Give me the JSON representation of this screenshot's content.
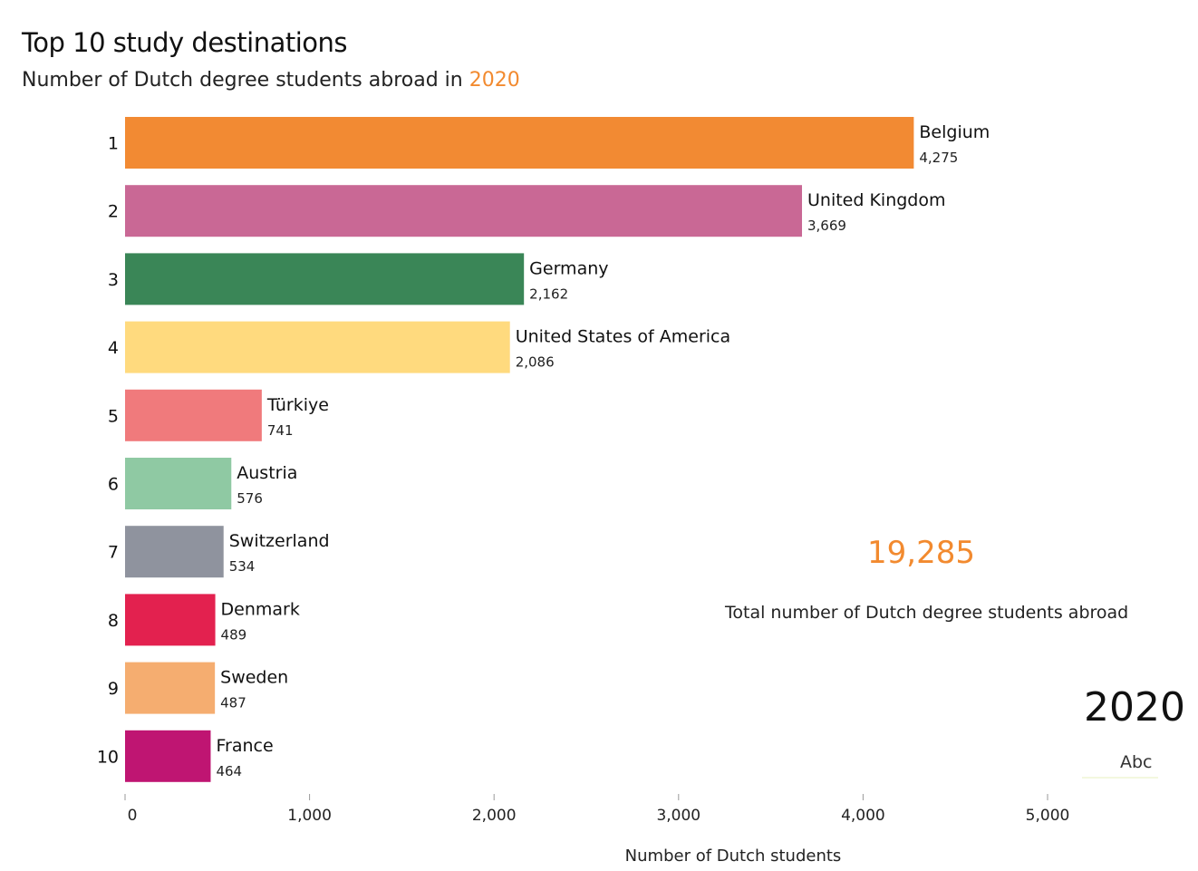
{
  "chart_data": {
    "type": "bar",
    "orientation": "horizontal",
    "title": "Top 10 study destinations",
    "subtitle_prefix": "Number of Dutch degree students abroad in",
    "subtitle_year": "2020",
    "xlabel": "Number of Dutch students",
    "xlim": [
      0,
      5500
    ],
    "xticks": [
      0,
      1000,
      2000,
      3000,
      4000,
      5000
    ],
    "xtick_labels": [
      "0",
      "1,000",
      "2,000",
      "3,000",
      "4,000",
      "5,000"
    ],
    "grid": false,
    "bars": [
      {
        "rank": "1",
        "country": "Belgium",
        "value": 4275,
        "label": "4,275",
        "color": "#f28a33"
      },
      {
        "rank": "2",
        "country": "United Kingdom",
        "value": 3669,
        "label": "3,669",
        "color": "#c96895"
      },
      {
        "rank": "3",
        "country": "Germany",
        "value": 2162,
        "label": "2,162",
        "color": "#3a8657"
      },
      {
        "rank": "4",
        "country": "United States of America",
        "value": 2086,
        "label": "2,086",
        "color": "#ffda7e"
      },
      {
        "rank": "5",
        "country": "Türkiye",
        "value": 741,
        "label": "741",
        "color": "#f07a7c"
      },
      {
        "rank": "6",
        "country": "Austria",
        "value": 576,
        "label": "576",
        "color": "#8fc9a3"
      },
      {
        "rank": "7",
        "country": "Switzerland",
        "value": 534,
        "label": "534",
        "color": "#8f939e"
      },
      {
        "rank": "8",
        "country": "Denmark",
        "value": 489,
        "label": "489",
        "color": "#e3214f"
      },
      {
        "rank": "9",
        "country": "Sweden",
        "value": 487,
        "label": "487",
        "color": "#f5ad70"
      },
      {
        "rank": "10",
        "country": "France",
        "value": 464,
        "label": "464",
        "color": "#bf1572"
      }
    ],
    "total_value": "19,285",
    "total_label": "Total number of Dutch degree students abroad",
    "current_year": "2020",
    "legend_text": "Abc",
    "accent_color": "#f28a2f"
  }
}
